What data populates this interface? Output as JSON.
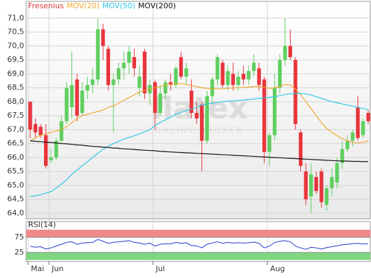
{
  "chart_data": [
    {
      "type": "candlestick",
      "watermark": "flatex",
      "watermark_sub": "ONLINE BROKER",
      "categories": [
        "Mai",
        null,
        null,
        null,
        "Jun",
        null,
        null,
        null,
        null,
        null,
        null,
        null,
        null,
        null,
        null,
        null,
        null,
        null,
        null,
        null,
        null,
        null,
        null,
        null,
        "Jul",
        null,
        null,
        null,
        null,
        null,
        null,
        null,
        null,
        null,
        null,
        null,
        null,
        null,
        null,
        null,
        null,
        null,
        null,
        null,
        null,
        null,
        "Aug",
        null,
        null,
        null,
        null,
        null,
        null,
        null,
        null,
        null,
        null,
        null,
        null,
        null,
        null,
        null,
        null,
        null,
        null,
        null
      ],
      "candles": {
        "name": "Fresenius",
        "up_color": "#5fcf5f",
        "down_color": "#e8343c",
        "name_color": "#e03a3a",
        "open": [
          68.0,
          67.2,
          67.1,
          66.8,
          65.9,
          66.0,
          66.6,
          67.3,
          67.8,
          68.8,
          67.6,
          68.4,
          68.6,
          68.8,
          70.6,
          69.9,
          68.6,
          68.8,
          69.2,
          69.4,
          69.6,
          68.5,
          69.8,
          68.3,
          68.7,
          67.6,
          68.3,
          68.7,
          68.6,
          69.6,
          68.9,
          68.4,
          67.6,
          67.9,
          66.6,
          68.2,
          68.8,
          69.4,
          68.6,
          69.0,
          68.6,
          69.0,
          68.8,
          69.1,
          69.2,
          68.8,
          66.2,
          66.8,
          68.5,
          69.5,
          70.0,
          69.5,
          66.9,
          65.5,
          64.6,
          65.3,
          65.5,
          64.3,
          64.9,
          65.1,
          65.8,
          66.3,
          66.6,
          67.8,
          66.8,
          67.6
        ],
        "high": [
          68.0,
          67.4,
          67.2,
          67.2,
          66.3,
          66.7,
          67.5,
          68.7,
          69.8,
          69.0,
          68.7,
          68.9,
          69.2,
          71.0,
          70.8,
          70.0,
          69.0,
          69.4,
          69.8,
          70.0,
          69.9,
          69.3,
          69.9,
          68.8,
          68.8,
          68.6,
          68.8,
          69.0,
          69.3,
          69.8,
          69.4,
          68.8,
          68.0,
          68.0,
          68.4,
          68.9,
          69.7,
          69.5,
          69.3,
          69.4,
          69.1,
          69.3,
          69.3,
          69.7,
          69.4,
          68.9,
          66.9,
          69.0,
          69.7,
          71.0,
          70.6,
          69.6,
          67.0,
          65.8,
          65.8,
          65.5,
          65.6,
          65.0,
          65.6,
          66.0,
          66.6,
          66.8,
          67.0,
          68.2,
          67.4,
          67.7
        ],
        "low": [
          66.7,
          66.7,
          66.7,
          65.6,
          65.8,
          65.9,
          66.5,
          67.2,
          67.4,
          67.3,
          67.5,
          68.1,
          68.3,
          68.6,
          69.5,
          68.4,
          66.9,
          68.6,
          68.8,
          69.0,
          68.9,
          68.2,
          68.1,
          67.9,
          67.0,
          67.5,
          68.1,
          68.4,
          68.5,
          68.8,
          68.6,
          67.4,
          67.2,
          65.5,
          66.5,
          67.9,
          68.6,
          68.5,
          68.4,
          68.4,
          68.4,
          68.6,
          68.6,
          68.9,
          68.4,
          65.8,
          65.7,
          66.6,
          68.3,
          69.3,
          69.5,
          67.0,
          65.5,
          64.3,
          64.0,
          64.7,
          64.2,
          64.1,
          64.6,
          64.9,
          65.6,
          66.2,
          66.4,
          66.6,
          66.7,
          67.2
        ],
        "close": [
          67.0,
          66.9,
          66.8,
          65.7,
          66.0,
          66.6,
          67.3,
          68.5,
          68.6,
          67.5,
          68.4,
          68.6,
          68.8,
          70.6,
          70.0,
          68.6,
          68.8,
          69.2,
          69.4,
          69.8,
          69.2,
          68.9,
          68.3,
          68.6,
          67.6,
          68.3,
          68.7,
          68.6,
          69.2,
          68.9,
          69.2,
          67.6,
          67.4,
          66.6,
          68.2,
          68.8,
          69.6,
          68.6,
          69.1,
          68.6,
          68.9,
          68.8,
          69.1,
          69.4,
          68.6,
          66.2,
          66.8,
          68.5,
          69.5,
          70.0,
          69.6,
          67.2,
          65.7,
          64.5,
          65.4,
          64.8,
          64.4,
          64.9,
          65.3,
          65.8,
          66.3,
          66.6,
          66.9,
          66.7,
          67.3,
          67.3
        ]
      },
      "lines": [
        {
          "name": "MOV(20)",
          "color": "#f0a830",
          "values": [
            66.6,
            66.7,
            66.8,
            66.85,
            66.9,
            66.95,
            67.0,
            67.1,
            67.25,
            67.4,
            67.5,
            67.55,
            67.6,
            67.65,
            67.7,
            67.8,
            67.85,
            67.95,
            68.05,
            68.15,
            68.25,
            68.35,
            68.4,
            68.45,
            68.5,
            68.55,
            68.6,
            68.62,
            68.65,
            68.65,
            68.62,
            68.58,
            68.55,
            68.5,
            68.48,
            68.46,
            68.46,
            68.47,
            68.48,
            68.5,
            68.5,
            68.52,
            68.53,
            68.54,
            68.55,
            68.52,
            68.48,
            68.5,
            68.55,
            68.62,
            68.6,
            68.45,
            68.25,
            68.0,
            67.75,
            67.5,
            67.25,
            67.05,
            66.9,
            66.78,
            66.68,
            66.6,
            66.55,
            66.52,
            66.55,
            66.6
          ]
        },
        {
          "name": "MOV(50)",
          "color": "#2ec8e6",
          "values": [
            64.6,
            64.63,
            64.67,
            64.72,
            64.78,
            64.9,
            65.05,
            65.2,
            65.4,
            65.55,
            65.7,
            65.85,
            66.0,
            66.15,
            66.3,
            66.4,
            66.5,
            66.58,
            66.66,
            66.72,
            66.78,
            66.85,
            66.92,
            67.0,
            67.15,
            67.25,
            67.35,
            67.45,
            67.55,
            67.62,
            67.68,
            67.74,
            67.8,
            67.88,
            67.92,
            67.95,
            67.98,
            68.0,
            68.02,
            68.03,
            68.05,
            68.06,
            68.08,
            68.1,
            68.12,
            68.14,
            68.16,
            68.18,
            68.22,
            68.26,
            68.28,
            68.3,
            68.3,
            68.28,
            68.24,
            68.18,
            68.12,
            68.06,
            68.0,
            67.96,
            67.92,
            67.88,
            67.84,
            67.8,
            67.76,
            67.72
          ]
        },
        {
          "name": "MOV(200)",
          "color": "#111111",
          "values": [
            66.6,
            66.58,
            66.57,
            66.55,
            66.54,
            66.52,
            66.5,
            66.49,
            66.47,
            66.45,
            66.44,
            66.42,
            66.4,
            66.39,
            66.37,
            66.36,
            66.34,
            66.33,
            66.31,
            66.3,
            66.29,
            66.27,
            66.26,
            66.25,
            66.24,
            66.22,
            66.21,
            66.2,
            66.19,
            66.18,
            66.17,
            66.16,
            66.15,
            66.14,
            66.13,
            66.12,
            66.11,
            66.1,
            66.09,
            66.08,
            66.07,
            66.06,
            66.05,
            66.04,
            66.03,
            66.02,
            66.01,
            66.0,
            65.99,
            65.98,
            65.97,
            65.96,
            65.95,
            65.94,
            65.93,
            65.92,
            65.91,
            65.9,
            65.89,
            65.88,
            65.87,
            65.87,
            65.86,
            65.86,
            65.85,
            65.85
          ]
        }
      ],
      "ylim": [
        63.8,
        71.6
      ],
      "yticks": [
        {
          "value": 64,
          "label": "64,0"
        },
        {
          "value": 64.5,
          "label": "64,5"
        },
        {
          "value": 65,
          "label": "65,0"
        },
        {
          "value": 65.5,
          "label": "65,5"
        },
        {
          "value": 66,
          "label": "66,0"
        },
        {
          "value": 66.5,
          "label": "66,5"
        },
        {
          "value": 67,
          "label": "67,0"
        },
        {
          "value": 67.5,
          "label": "67,5"
        },
        {
          "value": 68,
          "label": "68,0"
        },
        {
          "value": 68.5,
          "label": "68,5"
        },
        {
          "value": 69,
          "label": "69,0"
        },
        {
          "value": 69.5,
          "label": "69,5"
        },
        {
          "value": 70,
          "label": "70,0"
        },
        {
          "value": 70.5,
          "label": "70,5"
        },
        {
          "value": 71,
          "label": "71,0"
        }
      ],
      "grid": true
    },
    {
      "type": "line",
      "title": "RSI(14)",
      "color": "#2233cc",
      "values": [
        45,
        42,
        44,
        36,
        40,
        46,
        52,
        58,
        60,
        52,
        56,
        57,
        58,
        68,
        62,
        55,
        58,
        60,
        62,
        64,
        58,
        56,
        52,
        56,
        46,
        52,
        54,
        53,
        58,
        55,
        57,
        48,
        47,
        40,
        52,
        56,
        60,
        55,
        58,
        56,
        57,
        56,
        57,
        59,
        55,
        40,
        46,
        58,
        62,
        64,
        60,
        46,
        40,
        35,
        42,
        40,
        36,
        41,
        44,
        47,
        50,
        52,
        54,
        55,
        53,
        54
      ],
      "bands": [
        {
          "from": 75,
          "to": 100,
          "color": "#f08a8a"
        },
        {
          "from": 0,
          "to": 25,
          "color": "#7fd67f"
        }
      ],
      "ylim": [
        -5,
        127
      ],
      "yticks": [
        25,
        75
      ]
    }
  ]
}
